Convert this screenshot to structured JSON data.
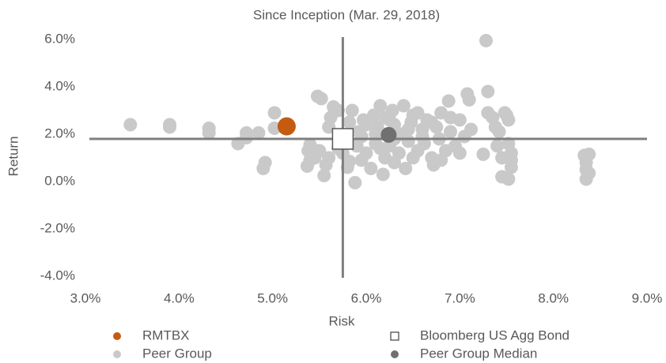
{
  "chart_data": {
    "type": "scatter",
    "title": "Since Inception (Mar. 29, 2018)",
    "xlabel": "Risk",
    "ylabel": "Return",
    "xlim": [
      3,
      9
    ],
    "ylim": [
      -4,
      6
    ],
    "xticks": [
      {
        "value": 3,
        "label": "3.0%"
      },
      {
        "value": 4,
        "label": "4.0%"
      },
      {
        "value": 5,
        "label": "5.0%"
      },
      {
        "value": 6,
        "label": "6.0%"
      },
      {
        "value": 7,
        "label": "7.0%"
      },
      {
        "value": 8,
        "label": "8.0%"
      },
      {
        "value": 9,
        "label": "9.0%"
      }
    ],
    "yticks": [
      {
        "value": -4,
        "label": "-4.0%"
      },
      {
        "value": -2,
        "label": "-2.0%"
      },
      {
        "value": 0,
        "label": "0.0%"
      },
      {
        "value": 2,
        "label": "2.0%"
      },
      {
        "value": 4,
        "label": "4.0%"
      },
      {
        "value": 6,
        "label": "6.0%"
      }
    ],
    "series": [
      {
        "name": "RMTBX",
        "color": "#c55a11",
        "x": [
          5.15
        ],
        "values": [
          2.33
        ]
      },
      {
        "name": "Peer Group",
        "color": "#c9c9c9",
        "x": [
          3.48,
          3.9,
          3.9,
          4.32,
          4.32,
          4.63,
          4.72,
          4.72,
          4.85,
          4.9,
          4.92,
          5.02,
          5.02,
          5.37,
          5.38,
          5.4,
          5.45,
          5.48,
          5.52,
          5.55,
          5.57,
          5.6,
          5.6,
          5.62,
          5.65,
          5.7,
          5.7,
          5.75,
          5.8,
          5.82,
          5.82,
          5.85,
          5.88,
          5.9,
          5.92,
          5.95,
          5.97,
          6.0,
          6.05,
          6.08,
          6.1,
          6.12,
          6.15,
          6.18,
          6.2,
          6.2,
          6.25,
          6.28,
          6.3,
          6.3,
          6.35,
          6.38,
          6.4,
          6.42,
          6.45,
          6.48,
          6.5,
          6.5,
          6.55,
          6.6,
          6.62,
          6.65,
          6.7,
          6.72,
          6.75,
          6.78,
          6.8,
          6.85,
          6.88,
          6.9,
          6.95,
          7.0,
          7.05,
          7.08,
          7.1,
          7.12,
          7.25,
          7.28,
          7.3,
          7.3,
          7.35,
          7.38,
          7.4,
          7.42,
          7.45,
          7.45,
          7.48,
          7.5,
          7.52,
          7.52,
          7.52,
          7.55,
          7.55,
          7.55,
          8.33,
          8.35,
          8.35,
          8.35,
          8.38,
          8.38,
          6.1,
          6.3,
          6.6,
          6.0,
          6.45,
          6.7,
          5.95,
          6.15,
          7.0,
          6.8,
          5.5,
          5.4,
          6.55,
          6.25,
          6.9
        ],
        "values": [
          2.4,
          2.4,
          2.3,
          2.25,
          2.05,
          1.6,
          2.05,
          1.85,
          2.05,
          0.55,
          0.8,
          2.9,
          2.25,
          0.65,
          1.3,
          1.55,
          1.0,
          3.6,
          3.5,
          0.25,
          0.7,
          1.0,
          2.3,
          2.7,
          3.15,
          3.0,
          1.4,
          1.2,
          0.6,
          0.85,
          2.5,
          3.0,
          -0.05,
          1.5,
          2.1,
          1.9,
          2.6,
          1.2,
          0.55,
          2.8,
          1.6,
          2.3,
          3.2,
          0.3,
          1.0,
          2.7,
          1.5,
          3.0,
          0.8,
          2.4,
          1.2,
          2.0,
          3.2,
          0.55,
          1.7,
          2.5,
          1.0,
          2.8,
          1.3,
          2.2,
          1.6,
          2.6,
          1.0,
          0.7,
          2.3,
          1.8,
          2.9,
          1.3,
          3.4,
          2.1,
          1.5,
          2.6,
          1.9,
          3.7,
          3.45,
          2.2,
          1.15,
          5.95,
          3.8,
          2.9,
          2.7,
          2.3,
          1.5,
          2.1,
          0.2,
          1.0,
          2.9,
          2.8,
          2.6,
          1.6,
          0.1,
          0.6,
          1.2,
          0.9,
          1.1,
          0.8,
          0.5,
          0.1,
          1.15,
          0.35,
          2.0,
          1.8,
          1.9,
          2.4,
          2.2,
          2.5,
          0.9,
          1.4,
          1.2,
          0.9,
          1.3,
          0.9,
          2.9,
          2.6,
          2.7
        ]
      },
      {
        "name": "Bloomberg US Agg Bond",
        "color": "#ffffff",
        "x": [
          5.75
        ],
        "values": [
          1.8
        ]
      },
      {
        "name": "Peer Group Median",
        "color": "#707070",
        "x": [
          6.24
        ],
        "values": [
          1.97
        ]
      }
    ]
  }
}
